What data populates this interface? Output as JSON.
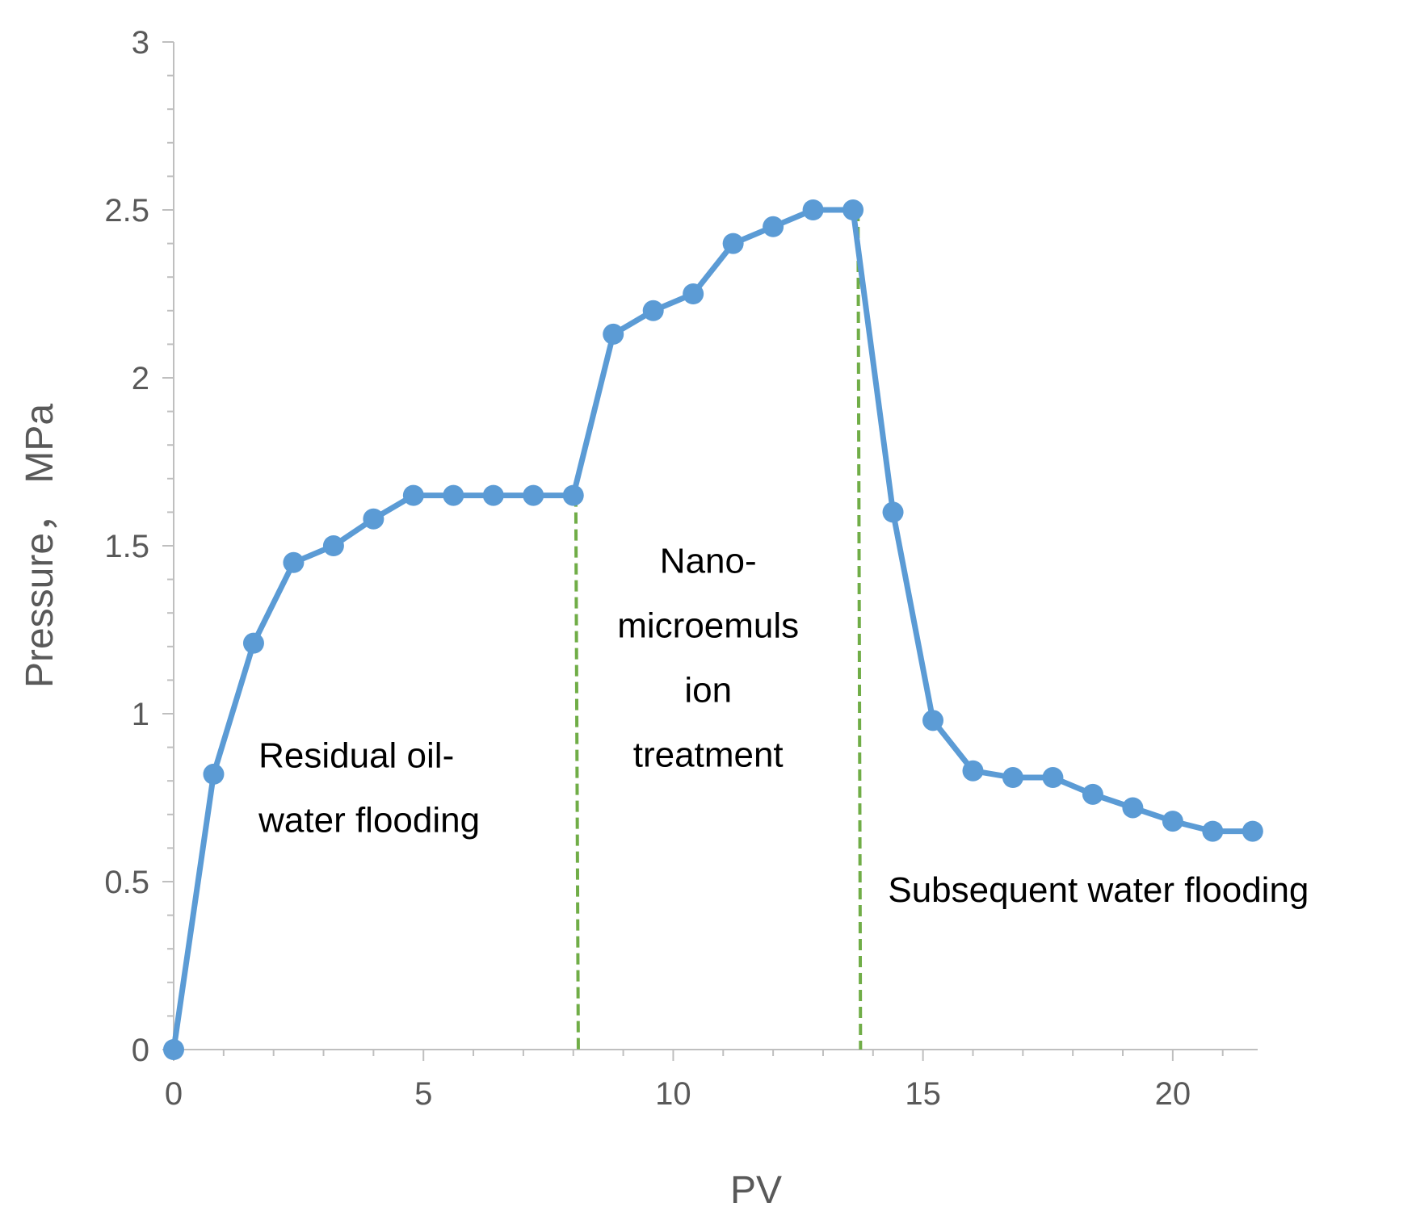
{
  "chart_data": {
    "type": "line",
    "title": "",
    "xlabel": "PV",
    "ylabel": "Pressure， MPa",
    "xlim": [
      0,
      21.7
    ],
    "ylim": [
      0,
      3
    ],
    "x_ticks": [
      "0",
      "5",
      "10",
      "15",
      "20"
    ],
    "x_tick_values": [
      0,
      5,
      10,
      15,
      20
    ],
    "y_ticks": [
      "0",
      "0.5",
      "1",
      "1.5",
      "2",
      "2.5",
      "3"
    ],
    "y_tick_values": [
      0,
      0.5,
      1,
      1.5,
      2,
      2.5,
      3
    ],
    "grid": false,
    "series": [
      {
        "name": "Pressure",
        "color": "#5b9bd5",
        "x": [
          0,
          0.8,
          1.6,
          2.4,
          3.2,
          4.0,
          4.8,
          5.6,
          6.4,
          7.2,
          8.0,
          8.8,
          9.6,
          10.4,
          11.2,
          12.0,
          12.8,
          13.6,
          14.4,
          15.2,
          16.0,
          16.8,
          17.6,
          18.4,
          19.2,
          20.0,
          20.8,
          21.6
        ],
        "values": [
          0,
          0.82,
          1.21,
          1.45,
          1.5,
          1.58,
          1.65,
          1.65,
          1.65,
          1.65,
          1.65,
          2.13,
          2.2,
          2.25,
          2.4,
          2.45,
          2.5,
          2.5,
          1.6,
          0.98,
          0.83,
          0.81,
          0.81,
          0.76,
          0.72,
          0.68,
          0.65,
          0.65
        ]
      }
    ],
    "dividers": [
      {
        "x": 8.05,
        "y_from": 0,
        "y_to": 1.65,
        "color": "#70ad47",
        "style": "dashed"
      },
      {
        "x": 13.7,
        "y_from": 0,
        "y_to": 2.5,
        "color": "#70ad47",
        "style": "dashed"
      }
    ],
    "annotations": [
      {
        "lines": [
          "Residual oil-",
          "water flooding"
        ],
        "x": 1.7,
        "y": 0.84,
        "align": "start"
      },
      {
        "lines": [
          "Nano-",
          "microemuls",
          "ion",
          "treatment"
        ],
        "x": 10.7,
        "y": 1.42,
        "align": "middle"
      },
      {
        "lines": [
          "Subsequent water flooding"
        ],
        "x": 14.3,
        "y": 0.44,
        "align": "start"
      }
    ]
  }
}
